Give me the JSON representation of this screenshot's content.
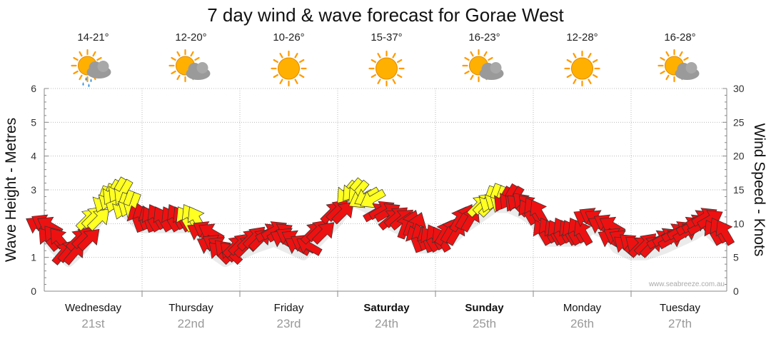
{
  "title": "7 day wind & wave forecast for Gorae West",
  "credit": "www.seabreeze.com.au",
  "colors": {
    "arrow_red": "#ee1111",
    "arrow_yellow": "#ffff22",
    "arrow_stroke": "#333333",
    "grid": "#bbbbbb",
    "sun": "#ffb000",
    "cloud": "#9a9a9a"
  },
  "days": [
    {
      "name": "Wednesday",
      "date": "21st",
      "temp": "14-21°",
      "icon": "sun-cloud-rain-icon",
      "bold": false
    },
    {
      "name": "Thursday",
      "date": "22nd",
      "temp": "12-20°",
      "icon": "sun-cloud-icon",
      "bold": false
    },
    {
      "name": "Friday",
      "date": "23rd",
      "temp": "10-26°",
      "icon": "sun-icon",
      "bold": false
    },
    {
      "name": "Saturday",
      "date": "24th",
      "temp": "15-37°",
      "icon": "sun-icon",
      "bold": true
    },
    {
      "name": "Sunday",
      "date": "25th",
      "temp": "16-23°",
      "icon": "sun-cloud-icon",
      "bold": true
    },
    {
      "name": "Monday",
      "date": "26th",
      "temp": "12-28°",
      "icon": "sun-icon",
      "bold": false
    },
    {
      "name": "Tuesday",
      "date": "27th",
      "temp": "16-28°",
      "icon": "sun-cloud-icon",
      "bold": false
    }
  ],
  "chart_data": {
    "type": "line",
    "title": "7 day wind & wave forecast for Gorae West",
    "ylabel_left": "Wave Height - Metres",
    "ylabel_right": "Wind Speed - Knots",
    "ylim_left": [
      0,
      6
    ],
    "ylim_right": [
      0,
      30
    ],
    "yticks_left": [
      "0",
      "1",
      "2",
      "3",
      "4",
      "5",
      "6"
    ],
    "yticks_right": [
      "0",
      "5",
      "10",
      "15",
      "20",
      "25",
      "30"
    ],
    "x_unit": "days from start of Wednesday 21st",
    "grid": true,
    "series": [
      {
        "name": "Wind Speed - Knots",
        "axis": "right",
        "x": [
          0.0,
          0.1,
          0.25,
          0.4,
          0.5,
          0.65,
          0.75,
          0.85,
          1.0,
          1.15,
          1.35,
          1.5,
          1.65,
          1.75,
          1.85,
          2.0,
          2.15,
          2.35,
          2.5,
          2.65,
          2.8,
          3.0,
          3.15,
          3.3,
          3.45,
          3.6,
          3.75,
          3.85,
          4.0,
          4.15,
          4.3,
          4.5,
          4.6,
          4.75,
          4.9,
          5.0,
          5.15,
          5.3,
          5.45,
          5.6,
          5.75,
          5.85,
          6.0,
          6.15,
          6.35,
          6.5,
          6.65,
          6.75,
          6.9
        ],
        "values": [
          10,
          8,
          6,
          8,
          11,
          14,
          15,
          13,
          11,
          11,
          11,
          11,
          9,
          7,
          6,
          7,
          8,
          9,
          8,
          7,
          9,
          12,
          15,
          14,
          12,
          11,
          10,
          8,
          8,
          9,
          11,
          13,
          14,
          14,
          13,
          12,
          9,
          9,
          9,
          11,
          10,
          8,
          7,
          7,
          8,
          9,
          10,
          11,
          9
        ],
        "direction_deg": [
          300,
          320,
          40,
          45,
          45,
          200,
          210,
          200,
          340,
          330,
          330,
          330,
          300,
          300,
          315,
          45,
          45,
          60,
          300,
          300,
          45,
          45,
          220,
          240,
          60,
          50,
          20,
          340,
          330,
          30,
          30,
          45,
          200,
          210,
          315,
          330,
          330,
          330,
          330,
          300,
          300,
          300,
          310,
          45,
          60,
          60,
          60,
          60,
          330
        ],
        "strength": [
          "red",
          "red",
          "red",
          "red",
          "yellow",
          "yellow",
          "yellow",
          "yellow",
          "red",
          "red",
          "red",
          "yellow",
          "red",
          "red",
          "red",
          "red",
          "red",
          "red",
          "red",
          "red",
          "red",
          "red",
          "yellow",
          "yellow",
          "red",
          "red",
          "red",
          "red",
          "red",
          "red",
          "red",
          "yellow",
          "yellow",
          "red",
          "red",
          "red",
          "red",
          "red",
          "red",
          "red",
          "red",
          "red",
          "red",
          "red",
          "red",
          "red",
          "red",
          "red",
          "red"
        ]
      }
    ]
  }
}
